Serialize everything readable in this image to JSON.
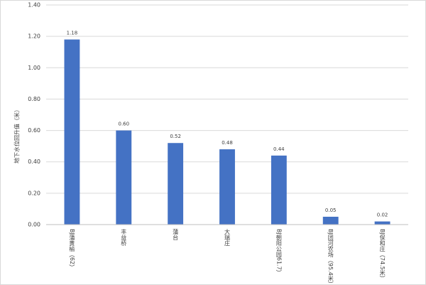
{
  "chart_data": {
    "type": "bar",
    "y_label": "地下水位回升值（米）",
    "categories": [
      "BJ蒲黄榆（62）",
      "丰益桥",
      "蒲台",
      "大瑞庄",
      "BJ朝阳公园61.7）",
      "BJ团河农场（95.4米）",
      "BJ保和庄（74.5米）"
    ],
    "values": [
      1.18,
      0.6,
      0.52,
      0.48,
      0.44,
      0.05,
      0.02
    ],
    "value_labels": [
      "1.18",
      "0.60",
      "0.52",
      "0.48",
      "0.44",
      "0.05",
      "0.02"
    ],
    "color": "#4472c4",
    "ylim": [
      0,
      1.4
    ],
    "yticks": [
      {
        "value": 0,
        "label": "0.00"
      },
      {
        "value": 0.2,
        "label": "0.20"
      },
      {
        "value": 0.4,
        "label": "0.40"
      },
      {
        "value": 0.6,
        "label": "0.60"
      },
      {
        "value": 0.8,
        "label": "0.80"
      },
      {
        "value": 1,
        "label": "1.00"
      },
      {
        "value": 1.2,
        "label": "1.20"
      },
      {
        "value": 1.4,
        "label": "1.40"
      }
    ],
    "grid": true
  }
}
